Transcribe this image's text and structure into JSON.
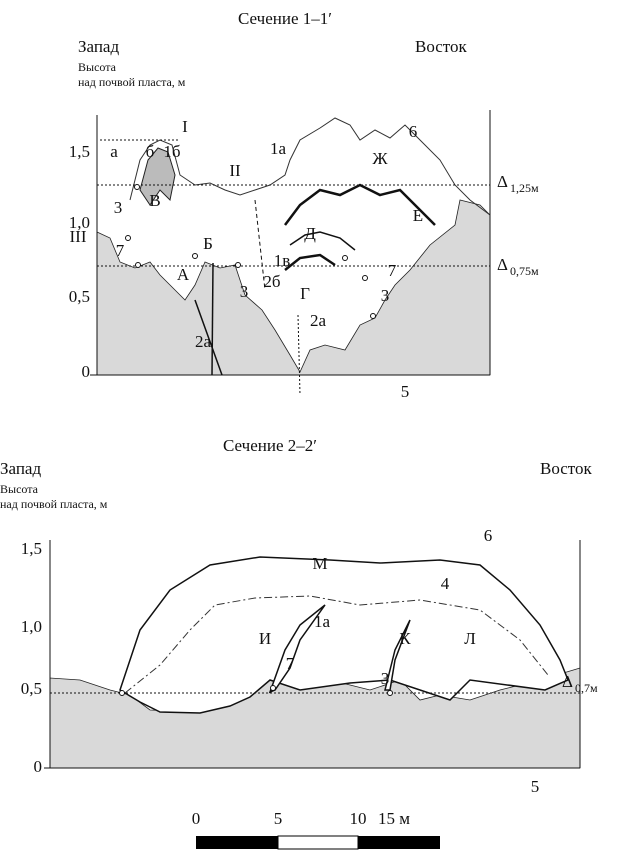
{
  "section1": {
    "title": "Сечение 1–1′",
    "west": "Запад",
    "east": "Восток",
    "axis_label": [
      "Высота",
      "над почвой пласта, м"
    ],
    "yticks": [
      "1,5",
      "1,0",
      "0,5",
      "0"
    ],
    "levels": [
      {
        "symbol": "Δ",
        "subscript": "1,25м"
      },
      {
        "symbol": "Δ",
        "subscript": "0,75м"
      }
    ],
    "labels": [
      "б",
      "I",
      "а",
      "1б",
      "1а",
      "6",
      "Ж",
      "II",
      "В",
      "3",
      "Е",
      "III",
      "7",
      "Б",
      "Д",
      "1в",
      "А",
      "7",
      "3",
      "2б",
      "Г",
      "3",
      "2а",
      "2а",
      "5"
    ]
  },
  "section2": {
    "title": "Сечение 2–2′",
    "west": "Запад",
    "east": "Восток",
    "axis_label": [
      "Высота",
      "над почвой пласта, м"
    ],
    "yticks": [
      "1,5",
      "1,0",
      "0,5",
      "0"
    ],
    "levels": [
      {
        "symbol": "Δ",
        "subscript": "0,7м"
      }
    ],
    "labels": [
      "6",
      "М",
      "4",
      "1а",
      "И",
      "К",
      "Л",
      "7",
      "3",
      "5"
    ]
  },
  "scale_bar": {
    "labels": [
      "0",
      "5",
      "10",
      "15 м"
    ]
  }
}
